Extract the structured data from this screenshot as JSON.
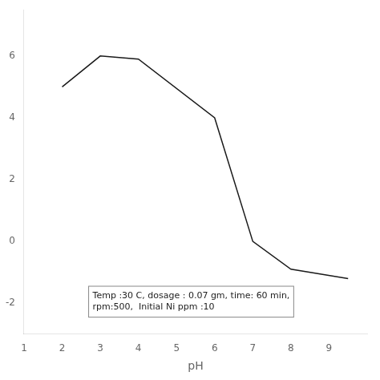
{
  "chart_data": {
    "type": "line",
    "x": [
      2,
      3,
      4,
      6,
      7,
      8,
      9.5
    ],
    "values": [
      5.0,
      6.0,
      5.9,
      4.0,
      0.0,
      -0.9,
      -1.2
    ],
    "color": "#1a1a1a",
    "xlabel": "pH",
    "annotation": "Temp :30 C, dosage : 0.07 gm, time: 60 min,\nrpm:500,  Initial Ni ppm :10",
    "xlim": [
      1,
      10
    ],
    "ylim": [
      -3,
      7.5
    ],
    "xticks": [
      1,
      2,
      3,
      4,
      5,
      6,
      7,
      8,
      9
    ],
    "yticks": [
      -2,
      0,
      2,
      4,
      6
    ],
    "grid": false
  }
}
